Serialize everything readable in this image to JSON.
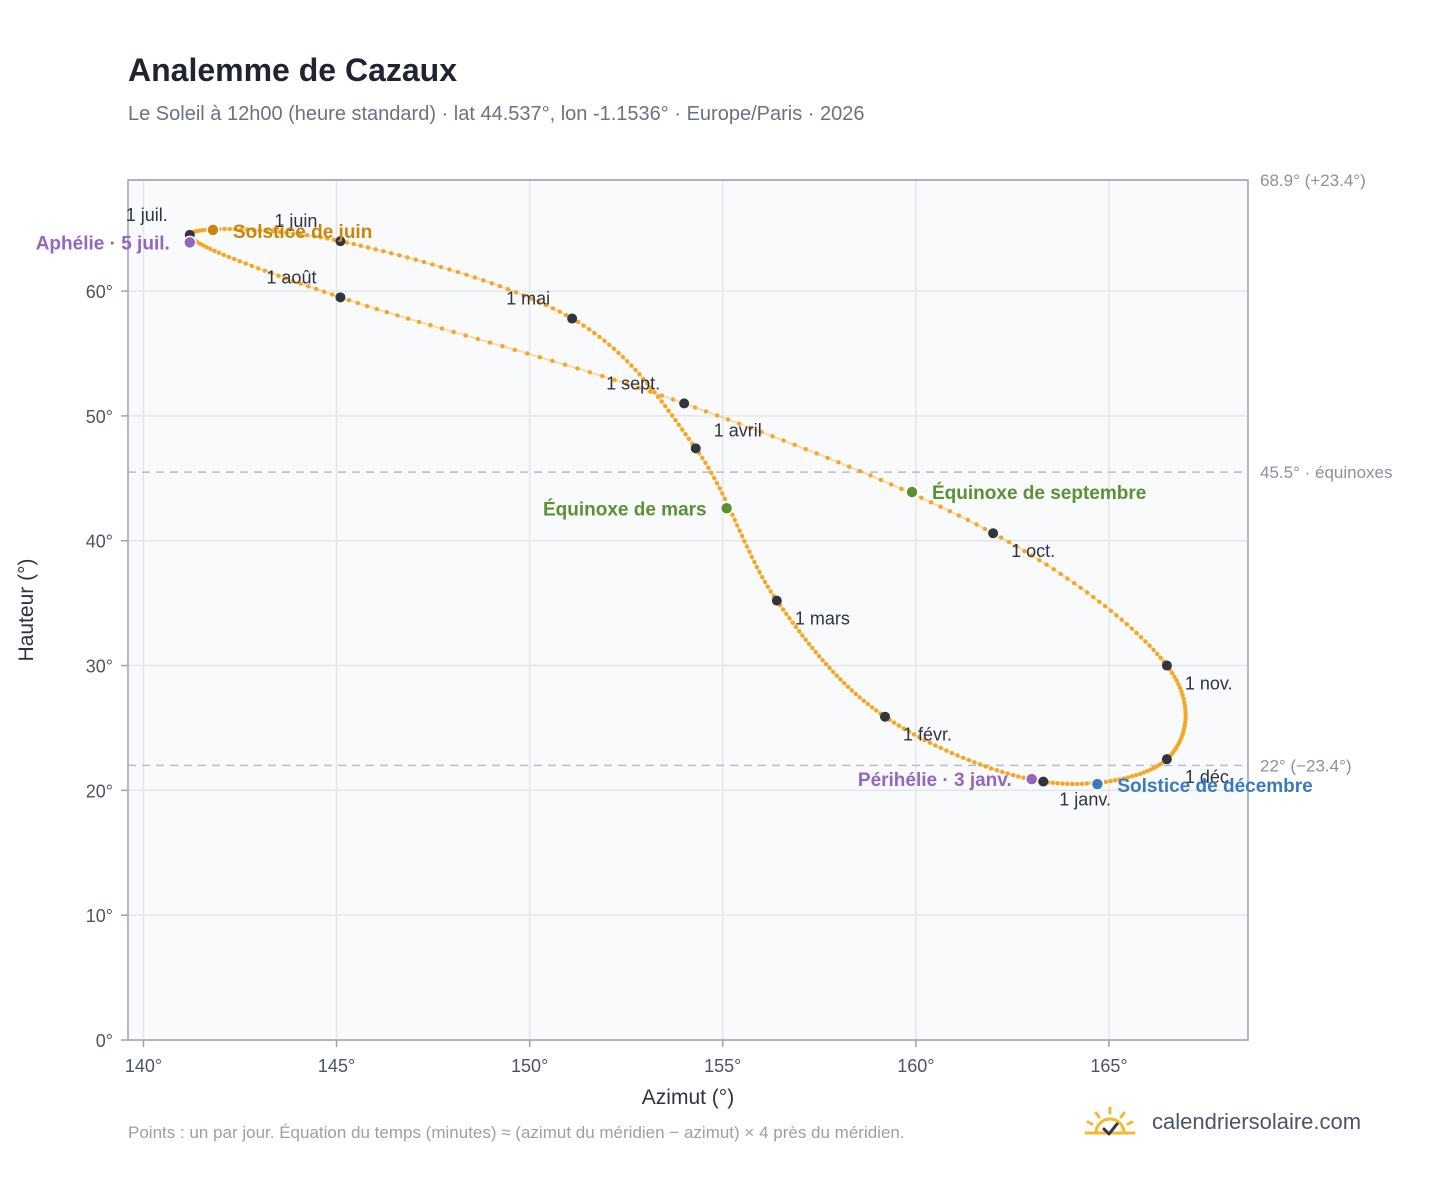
{
  "header": {
    "title": "Analemme de Cazaux",
    "subtitle": "Le Soleil à 12h00 (heure standard) · lat 44.537°, lon -1.1536° · Europe/Paris · 2026"
  },
  "footer": {
    "note": "Points : un par jour. Équation du temps (minutes) ≈ (azimut du méridien − azimut) × 4 près du méridien.",
    "brand": "calendriersolaire.com",
    "brand_icon": "sun-check-icon"
  },
  "colors": {
    "curve": "#f5a623",
    "month_marker": "#2f3640",
    "june_solstice": "#c8860d",
    "december_solstice": "#3a7bbf",
    "equinox": "#5a9232",
    "apsis": "#9466c0",
    "reference_line": "#b8bec8",
    "plot_bg": "#f8fafc",
    "grid": "#e3e7ec"
  },
  "chart_data": {
    "type": "scatter",
    "title": "Analemme de Cazaux",
    "xlabel": "Azimut (°)",
    "ylabel": "Hauteur (°)",
    "xlim": [
      139.6,
      168.6
    ],
    "ylim": [
      0,
      68.9
    ],
    "x_ticks": [
      "140°",
      "145°",
      "150°",
      "155°",
      "160°",
      "165°"
    ],
    "y_ticks": [
      "0°",
      "10°",
      "20°",
      "30°",
      "40°",
      "50°",
      "60°"
    ],
    "grid": true,
    "reference_lines": [
      {
        "label": "68.9° (+23.4°)",
        "y": 68.9,
        "style": "solid"
      },
      {
        "label": "45.5° · équinoxes",
        "y": 45.5,
        "style": "dashed"
      },
      {
        "label": "22° (−23.4°)",
        "y": 22.0,
        "style": "dashed"
      }
    ],
    "months": [
      {
        "label": "1 janv.",
        "x": 163.3,
        "y": 20.7
      },
      {
        "label": "1 févr.",
        "x": 159.2,
        "y": 25.9
      },
      {
        "label": "1 mars",
        "x": 156.4,
        "y": 35.2
      },
      {
        "label": "1 avril",
        "x": 154.3,
        "y": 47.4
      },
      {
        "label": "1 mai",
        "x": 151.1,
        "y": 57.8
      },
      {
        "label": "1 juin",
        "x": 145.1,
        "y": 64.0
      },
      {
        "label": "1 juil.",
        "x": 141.2,
        "y": 64.5
      },
      {
        "label": "1 août",
        "x": 145.1,
        "y": 59.5
      },
      {
        "label": "1 sept.",
        "x": 154.0,
        "y": 51.0
      },
      {
        "label": "1 oct.",
        "x": 162.0,
        "y": 40.6
      },
      {
        "label": "1 nov.",
        "x": 166.5,
        "y": 30.0
      },
      {
        "label": "1 déc.",
        "x": 166.5,
        "y": 22.5
      }
    ],
    "events": [
      {
        "label": "Solstice de juin",
        "x": 141.8,
        "y": 64.9,
        "kind": "june_solstice"
      },
      {
        "label": "Aphélie · 5 juil.",
        "x": 141.2,
        "y": 63.9,
        "kind": "apsis"
      },
      {
        "label": "Équinoxe de mars",
        "x": 155.1,
        "y": 42.6,
        "kind": "equinox"
      },
      {
        "label": "Équinoxe de septembre",
        "x": 159.9,
        "y": 43.9,
        "kind": "equinox"
      },
      {
        "label": "Périhélie · 3 janv.",
        "x": 163.0,
        "y": 20.9,
        "kind": "apsis"
      },
      {
        "label": "Solstice de décembre",
        "x": 164.7,
        "y": 20.5,
        "kind": "december_solstice"
      }
    ]
  }
}
